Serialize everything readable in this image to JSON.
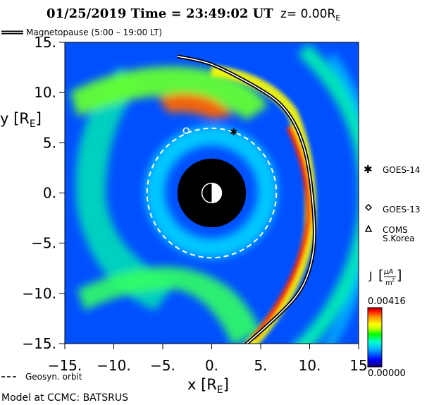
{
  "header": {
    "title": "01/25/2019 Time = 23:49:02 UT",
    "z_label": "z= 0.00R",
    "z_label_sub": "E"
  },
  "legend": {
    "magnetopause": "Magnetopause (5:00 – 19:00 LT)",
    "geosyn": "Geosyn. orbit"
  },
  "footer": {
    "model_text": "Model at CCMC: BATSRUS"
  },
  "satellites": [
    {
      "name": "GOES-14",
      "marker": "asterisk-icon"
    },
    {
      "name": "GOES-13",
      "marker": "diamond-icon"
    },
    {
      "name": "COMS",
      "name2": "S.Korea",
      "marker": "triangle-icon"
    }
  ],
  "colorbar": {
    "label_main": "J",
    "unit_num": "μA",
    "unit_den": "m",
    "unit_exp": "2",
    "max_label": "0.00416",
    "min_label": "0.00000",
    "colors": [
      "#1a0068",
      "#0000ff",
      "#00b4ff",
      "#00ffd2",
      "#00ff00",
      "#c8ff00",
      "#ffff00",
      "#ff8c00",
      "#ff0000",
      "#a00000"
    ]
  },
  "chart_data": {
    "type": "heatmap",
    "title": "01/25/2019 Time = 23:49:02 UT",
    "xlabel": "x [R",
    "xlabel_sub": "E",
    "ylabel": "y [R",
    "ylabel_sub": "E",
    "xlim": [
      -15,
      15
    ],
    "ylim": [
      -15,
      15
    ],
    "x_ticks": [
      -15,
      -10,
      -5,
      0,
      5,
      10,
      15
    ],
    "x_tick_labels": [
      "−15.",
      "−10.",
      "−5.",
      "0.",
      "5.",
      "10.",
      "15"
    ],
    "y_ticks": [
      15,
      10,
      5,
      0,
      -5,
      -10,
      -15
    ],
    "y_tick_labels": [
      "15.",
      "10.",
      "5.",
      "0.",
      "−5.",
      "−10.",
      "−15."
    ],
    "earth_shadow_radius": 3.5,
    "geosyn_radius": 6.6,
    "colorbar_range": [
      0.0,
      0.00416
    ],
    "magnetopause": [
      [
        -3.5,
        13.6
      ],
      [
        -1.0,
        13.2
      ],
      [
        1.0,
        12.4
      ],
      [
        3.0,
        11.4
      ],
      [
        5.0,
        10.3
      ],
      [
        7.0,
        9.0
      ],
      [
        8.5,
        7.0
      ],
      [
        9.5,
        4.5
      ],
      [
        10.0,
        2.0
      ],
      [
        10.3,
        -0.5
      ],
      [
        10.5,
        -3.0
      ],
      [
        10.5,
        -5.0
      ],
      [
        10.2,
        -7.0
      ],
      [
        9.5,
        -9.0
      ],
      [
        8.5,
        -10.5
      ],
      [
        7.0,
        -12.0
      ],
      [
        5.0,
        -13.8
      ],
      [
        3.2,
        -15.3
      ]
    ],
    "satellites_xy": [
      {
        "name": "GOES-14",
        "x": 2.2,
        "y": 6.1
      },
      {
        "name": "GOES-13",
        "x": -2.6,
        "y": 6.2
      }
    ]
  }
}
